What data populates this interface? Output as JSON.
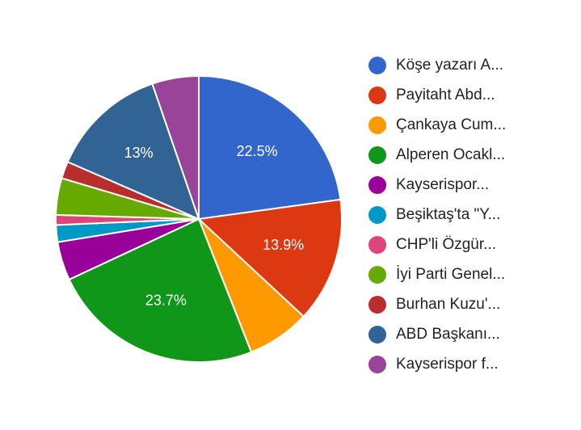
{
  "chart_data": {
    "type": "pie",
    "slices": [
      {
        "label": "Köşe yazarı A...",
        "value": 22.5,
        "color": "#3366cc",
        "display": "22.5%"
      },
      {
        "label": "Payitaht Abd...",
        "value": 13.9,
        "color": "#dc3912",
        "display": "13.9%"
      },
      {
        "label": "Çankaya Cum...",
        "value": 7.0,
        "color": "#ff9900",
        "display": ""
      },
      {
        "label": "Alperen Ocakl...",
        "value": 23.7,
        "color": "#109618",
        "display": "23.7%"
      },
      {
        "label": "Kayserispor...",
        "value": 4.3,
        "color": "#990099",
        "display": ""
      },
      {
        "label": "Beşiktaş'ta \"Y...",
        "value": 1.9,
        "color": "#0099c6",
        "display": ""
      },
      {
        "label": "CHP'li Özgür...",
        "value": 1.1,
        "color": "#dd4477",
        "display": ""
      },
      {
        "label": "İyi Parti Genel...",
        "value": 4.1,
        "color": "#66aa00",
        "display": ""
      },
      {
        "label": "Burhan Kuzu'...",
        "value": 1.9,
        "color": "#b82e2e",
        "display": ""
      },
      {
        "label": "ABD Başkanı...",
        "value": 13.0,
        "color": "#316395",
        "display": "13%"
      },
      {
        "label": "Kayserispor f...",
        "value": 5.2,
        "color": "#994499",
        "display": ""
      }
    ],
    "start_angle_deg": 90,
    "direction": "clockwise",
    "legend_position": "right"
  }
}
